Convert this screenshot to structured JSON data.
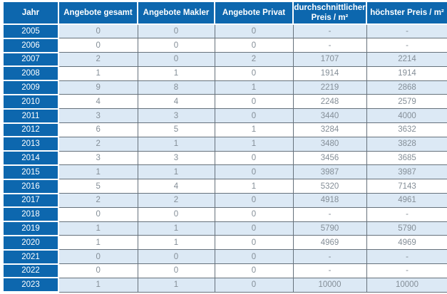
{
  "chart_data": {
    "type": "table",
    "columns": [
      "Jahr",
      "Angebote gesamt",
      "Angebote Makler",
      "Angebote Privat",
      "durchschnittlicher Preis / m²",
      "höchster Preis / m²"
    ],
    "rows": [
      [
        2005,
        0,
        0,
        0,
        "-",
        "-"
      ],
      [
        2006,
        0,
        0,
        0,
        "-",
        "-"
      ],
      [
        2007,
        2,
        0,
        2,
        1707,
        2214
      ],
      [
        2008,
        1,
        1,
        0,
        1914,
        1914
      ],
      [
        2009,
        9,
        8,
        1,
        2219,
        2868
      ],
      [
        2010,
        4,
        4,
        0,
        2248,
        2579
      ],
      [
        2011,
        3,
        3,
        0,
        3440,
        4000
      ],
      [
        2012,
        6,
        5,
        1,
        3284,
        3632
      ],
      [
        2013,
        2,
        1,
        1,
        3480,
        3828
      ],
      [
        2014,
        3,
        3,
        0,
        3456,
        3685
      ],
      [
        2015,
        1,
        1,
        0,
        3987,
        3987
      ],
      [
        2016,
        5,
        4,
        1,
        5320,
        7143
      ],
      [
        2017,
        2,
        2,
        0,
        4918,
        4961
      ],
      [
        2018,
        0,
        0,
        0,
        "-",
        "-"
      ],
      [
        2019,
        1,
        1,
        0,
        5790,
        5790
      ],
      [
        2020,
        1,
        1,
        0,
        4969,
        4969
      ],
      [
        2021,
        0,
        0,
        0,
        "-",
        "-"
      ],
      [
        2022,
        0,
        0,
        0,
        "-",
        "-"
      ],
      [
        2023,
        1,
        1,
        0,
        10000,
        10000
      ]
    ],
    "title": "",
    "legend": null,
    "grid": true
  },
  "colors": {
    "header_bg": "#0d67ae",
    "header_text": "#ffffff",
    "row_alt": "#dce9f5",
    "row_white": "#ffffff",
    "grid_border": "#66717b",
    "body_text": "#848e97"
  }
}
